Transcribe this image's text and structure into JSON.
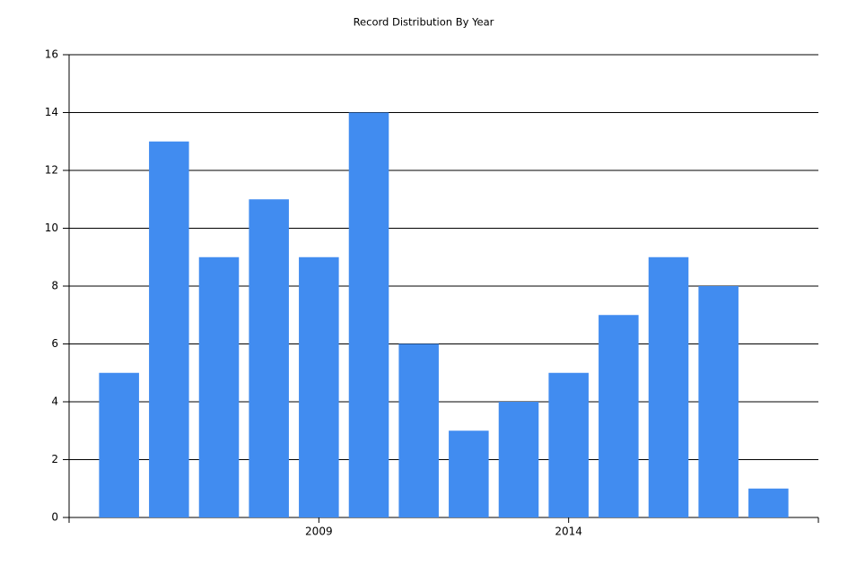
{
  "chart_data": {
    "type": "bar",
    "title": "Record Distribution By Year",
    "x": [
      2005,
      2006,
      2007,
      2008,
      2009,
      2010,
      2011,
      2012,
      2013,
      2014,
      2015,
      2016,
      2017,
      2018
    ],
    "values": [
      5,
      13,
      9,
      11,
      9,
      14,
      6,
      3,
      4,
      5,
      7,
      9,
      8,
      1
    ],
    "color": "#418cf0",
    "xlim": [
      2004,
      2019
    ],
    "xticks": [
      2009,
      2014
    ],
    "ylim": [
      0,
      16
    ],
    "yticks": [
      0,
      2,
      4,
      6,
      8,
      10,
      12,
      14,
      16
    ],
    "grid": true
  }
}
